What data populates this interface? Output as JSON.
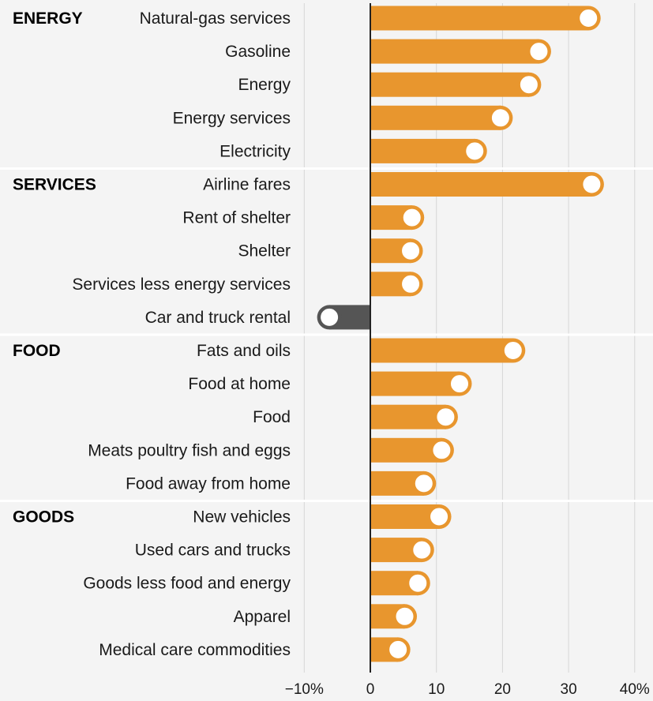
{
  "chart_data": {
    "type": "bar",
    "orientation": "horizontal",
    "xlim": [
      -10,
      40
    ],
    "x_ticks": [
      "−10%",
      "0",
      "10",
      "20",
      "30",
      "40%"
    ],
    "grid": true,
    "colors": {
      "positive": "#e8962e",
      "negative": "#555555",
      "marker_fill": "#ffffff"
    },
    "groups": [
      {
        "name": "ENERGY",
        "items": [
          {
            "label": "Natural-gas services",
            "value": 33
          },
          {
            "label": "Gasoline",
            "value": 25.5
          },
          {
            "label": "Energy",
            "value": 24
          },
          {
            "label": "Energy services",
            "value": 19.7
          },
          {
            "label": "Electricity",
            "value": 15.8
          }
        ]
      },
      {
        "name": "SERVICES",
        "items": [
          {
            "label": "Airline fares",
            "value": 33.5
          },
          {
            "label": "Rent of shelter",
            "value": 6.3
          },
          {
            "label": "Shelter",
            "value": 6.1
          },
          {
            "label": "Services less energy services",
            "value": 6.1
          },
          {
            "label": "Car and truck rental",
            "value": -6.2
          }
        ]
      },
      {
        "name": "FOOD",
        "items": [
          {
            "label": "Fats and oils",
            "value": 21.6
          },
          {
            "label": "Food at home",
            "value": 13.5
          },
          {
            "label": "Food",
            "value": 11.4
          },
          {
            "label": "Meats poultry fish and eggs",
            "value": 10.8
          },
          {
            "label": "Food away from home",
            "value": 8.1
          }
        ]
      },
      {
        "name": "GOODS",
        "items": [
          {
            "label": "New vehicles",
            "value": 10.4
          },
          {
            "label": "Used cars and trucks",
            "value": 7.8
          },
          {
            "label": "Goods less food and energy",
            "value": 7.2
          },
          {
            "label": "Apparel",
            "value": 5.2
          },
          {
            "label": "Medical care commodities",
            "value": 4.2
          }
        ]
      }
    ]
  }
}
